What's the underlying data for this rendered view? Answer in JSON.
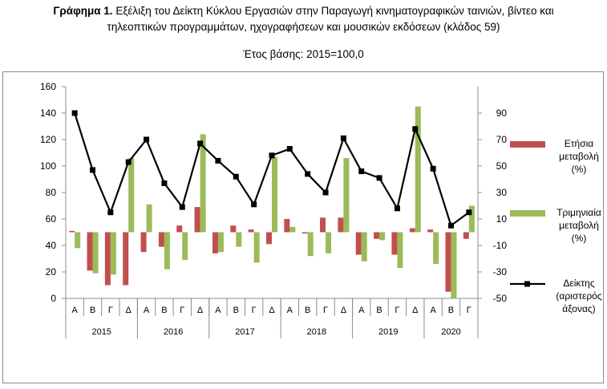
{
  "header": {
    "figure_label": "Γράφημα 1.",
    "title_line1": "Εξέλιξη του Δείκτη Κύκλου Εργασιών στην Παραγωγή κινηματογραφικών ταινιών, βίντεο και",
    "title_line2": "τηλεοπτικών προγραμμάτων, ηχογραφήσεων και μουσικών εκδόσεων (κλάδος 59)",
    "subtitle": "Έτος βάσης: 2015=100,0"
  },
  "chart_data": {
    "type": "bar",
    "categories": [
      "Α",
      "Β",
      "Γ",
      "Δ",
      "Α",
      "Β",
      "Γ",
      "Δ",
      "Α",
      "Β",
      "Γ",
      "Δ",
      "Α",
      "Β",
      "Γ",
      "Δ",
      "Α",
      "Β",
      "Γ",
      "Δ",
      "Α",
      "Β",
      "Γ"
    ],
    "years": [
      "2015",
      "2016",
      "2017",
      "2018",
      "2019",
      "2020"
    ],
    "year_spans": [
      4,
      4,
      4,
      4,
      4,
      3
    ],
    "left_axis": {
      "ylim": [
        0,
        160
      ],
      "ticks": [
        "0",
        "20",
        "40",
        "60",
        "80",
        "100",
        "120",
        "140",
        "160"
      ]
    },
    "right_axis": {
      "ylim": [
        -50,
        110
      ],
      "ticks": [
        "-50",
        "-30",
        "-10",
        "10",
        "30",
        "50",
        "70",
        "90"
      ]
    },
    "series": [
      {
        "name": "Ετήσια μεταβολή (%)",
        "kind": "bar",
        "axis": "right",
        "color": "#c0504d",
        "values": [
          1,
          -29,
          -40,
          -40,
          -15,
          -11,
          5,
          19,
          -16,
          5,
          2,
          -9,
          10,
          -1,
          11,
          11,
          -17,
          -5,
          -17,
          3,
          2,
          -45,
          -5
        ]
      },
      {
        "name": "Τριμηνιαία μεταβολή (%)",
        "kind": "bar",
        "axis": "right",
        "color": "#9bbb59",
        "values": [
          -12,
          -31,
          -32,
          56,
          21,
          -28,
          -21,
          74,
          -15,
          -11,
          -23,
          57,
          4,
          -18,
          -16,
          56,
          -22,
          -6,
          -27,
          95,
          -24,
          -50,
          20
        ]
      },
      {
        "name": "Δείκτης (αριστερός άξονας)",
        "kind": "line",
        "axis": "left",
        "color": "#000000",
        "values": [
          140,
          97,
          65,
          103,
          120,
          87,
          69,
          117,
          104,
          92,
          71,
          108,
          113,
          94,
          80,
          121,
          96,
          91,
          68,
          128,
          98,
          55,
          65
        ]
      }
    ]
  }
}
